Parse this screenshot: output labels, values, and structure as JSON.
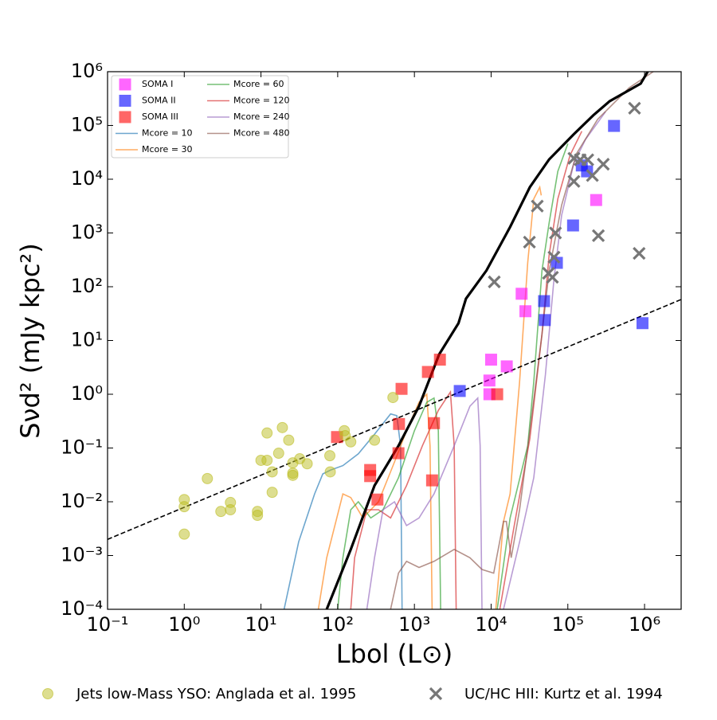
{
  "chart_data": {
    "type": "scatter",
    "xlabel": "Lbol (L⊙)",
    "ylabel": "Sνd² (mJy kpc²)",
    "xscale": "log",
    "yscale": "log",
    "xlim": [
      0.1,
      3000000
    ],
    "ylim": [
      0.0001,
      1000000
    ],
    "xticks": [
      {
        "value": 0.1,
        "label": "10⁻¹"
      },
      {
        "value": 1,
        "label": "10⁰"
      },
      {
        "value": 10,
        "label": "10¹"
      },
      {
        "value": 100,
        "label": "10²"
      },
      {
        "value": 1000,
        "label": "10³"
      },
      {
        "value": 10000,
        "label": "10⁴"
      },
      {
        "value": 100000,
        "label": "10⁵"
      },
      {
        "value": 1000000,
        "label": "10⁶"
      }
    ],
    "yticks": [
      {
        "value": 0.0001,
        "label": "10⁻⁴"
      },
      {
        "value": 0.001,
        "label": "10⁻³"
      },
      {
        "value": 0.01,
        "label": "10⁻²"
      },
      {
        "value": 0.1,
        "label": "10⁻¹"
      },
      {
        "value": 1,
        "label": "10⁰"
      },
      {
        "value": 10,
        "label": "10¹"
      },
      {
        "value": 100,
        "label": "10²"
      },
      {
        "value": 1000,
        "label": "10³"
      },
      {
        "value": 10000,
        "label": "10⁴"
      },
      {
        "value": 100000,
        "label": "10⁵"
      },
      {
        "value": 1000000,
        "label": "10⁶"
      }
    ],
    "legend_ncol": 2,
    "series": [
      {
        "name": "SOMA I",
        "marker": "square",
        "color": "#ff00ff",
        "legend": "upper left",
        "x": [
          234000,
          25000,
          28000,
          10000,
          9500,
          9500,
          16000
        ],
        "values": [
          4100,
          74,
          35,
          4.4,
          1.8,
          1.0,
          3.3
        ]
      },
      {
        "name": "SOMA II",
        "marker": "square",
        "color": "#0000ff",
        "legend": "upper left",
        "x": [
          400000,
          152000,
          178000,
          117000,
          72000,
          49000,
          50000,
          3900,
          940000
        ],
        "values": [
          98000,
          18000,
          14000,
          1380,
          278,
          54,
          24,
          1.15,
          21
        ]
      },
      {
        "name": "SOMA III",
        "marker": "square",
        "color": "#ff0000",
        "legend": "upper left",
        "x": [
          98,
          265,
          265,
          330,
          630,
          680,
          620,
          1500,
          2150,
          1800,
          1700,
          12000
        ],
        "values": [
          0.16,
          0.039,
          0.03,
          0.011,
          0.28,
          1.26,
          0.08,
          2.6,
          4.4,
          0.29,
          0.025,
          1.0
        ]
      },
      {
        "name": "Mcore = 10",
        "marker": "line",
        "color": "#1f77b4",
        "legend": "upper left",
        "x": [
          20,
          31,
          50,
          64,
          81,
          117,
          186,
          302,
          490,
          590,
          660,
          690
        ],
        "values": [
          0.0001,
          0.0018,
          0.014,
          0.033,
          0.039,
          0.047,
          0.078,
          0.18,
          0.43,
          0.4,
          0.11,
          0.0001
        ]
      },
      {
        "name": "Mcore = 30",
        "marker": "line",
        "color": "#ff7f0e",
        "legend": "upper left",
        "x": [
          56,
          72,
          117,
          148,
          213,
          340,
          550,
          790,
          1150,
          1450,
          1600,
          1700,
          null,
          11500,
          14500,
          17700,
          23500,
          30000,
          36000,
          43000,
          45000
        ],
        "values": [
          0.0001,
          0.00091,
          0.014,
          0.012,
          0.005,
          0.01,
          0.055,
          0.21,
          0.71,
          1.0,
          0.11,
          0.0001,
          null,
          0.0001,
          0.0043,
          0.014,
          1.7,
          280,
          4300,
          7100,
          5000
        ]
      },
      {
        "name": "Mcore = 60",
        "marker": "line",
        "color": "#2ca02c",
        "legend": "upper left",
        "x": [
          100,
          117,
          148,
          186,
          270,
          390,
          620,
          1000,
          1450,
          1800,
          2050,
          2200,
          null,
          12000,
          17700,
          30000,
          36000,
          46000,
          57000,
          74000,
          100000
        ],
        "values": [
          0.0001,
          0.00091,
          0.0071,
          0.01,
          0.005,
          0.0071,
          0.028,
          0.21,
          0.71,
          0.85,
          0.21,
          0.0001,
          null,
          0.0001,
          0.005,
          0.11,
          1.7,
          200,
          1550,
          14000,
          46000
        ]
      },
      {
        "name": "Mcore = 120",
        "marker": "line",
        "color": "#d62728",
        "legend": "upper left",
        "x": [
          148,
          166,
          240,
          340,
          490,
          790,
          1270,
          2050,
          2950,
          3300,
          3500,
          null,
          13000,
          20000,
          32000,
          46000,
          57000,
          74000,
          107000,
          152000
        ],
        "values": [
          0.0001,
          0.00091,
          0.0071,
          0.0071,
          0.005,
          0.02,
          0.11,
          0.5,
          1.1,
          0.11,
          0.0001,
          null,
          0.0001,
          0.0036,
          0.15,
          13,
          390,
          4300,
          28000,
          78000
        ]
      },
      {
        "name": "Mcore = 240",
        "marker": "line",
        "color": "#9467bd",
        "legend": "upper left",
        "x": [
          240,
          302,
          390,
          550,
          790,
          1150,
          1800,
          3300,
          5300,
          6700,
          7200,
          7600,
          null,
          14500,
          23500,
          36000,
          51000,
          66000,
          83000,
          120000,
          170000,
          310000
        ],
        "values": [
          0.0001,
          0.00091,
          0.0071,
          0.01,
          0.0036,
          0.005,
          0.014,
          0.11,
          0.6,
          0.85,
          0.11,
          0.0001,
          null,
          0.0001,
          0.0018,
          0.028,
          2.3,
          140,
          2150,
          20000,
          55000,
          180000
        ]
      },
      {
        "name": "Mcore = 480",
        "marker": "line",
        "color": "#8c564b",
        "legend": "upper left",
        "x": [
          490,
          620,
          790,
          1150,
          1800,
          3300,
          5300,
          7600,
          10800,
          14500,
          15800,
          18300,
          23500,
          32000,
          46000,
          57000,
          83000,
          130000,
          245000,
          630000,
          1300000
        ],
        "values": [
          0.0001,
          0.00047,
          0.00078,
          0.0006,
          0.00078,
          0.0013,
          0.00091,
          0.00055,
          0.00047,
          0.0043,
          0.0043,
          0.00091,
          0.0071,
          0.21,
          13,
          200,
          3300,
          30000,
          130000,
          500000,
          1000000
        ]
      },
      {
        "name": "Jets low-Mass YSO: Anglada et al. 1995",
        "marker": "circle",
        "color": "#bcbd22",
        "legend": "lower center",
        "x": [
          1,
          1,
          1,
          2,
          3,
          4,
          4,
          9,
          9,
          10,
          12,
          12,
          14,
          14,
          17,
          19,
          23,
          26,
          26,
          26,
          32,
          40,
          79,
          80,
          122,
          125,
          148,
          302,
          525
        ],
        "values": [
          0.011,
          0.0081,
          0.0025,
          0.027,
          0.0066,
          0.0097,
          0.0071,
          0.0066,
          0.0056,
          0.059,
          0.059,
          0.19,
          0.036,
          0.015,
          0.08,
          0.24,
          0.14,
          0.034,
          0.031,
          0.053,
          0.063,
          0.051,
          0.072,
          0.036,
          0.21,
          0.17,
          0.13,
          0.14,
          0.87
        ]
      },
      {
        "name": "UC/HC HII: Kurtz et al. 1994",
        "marker": "x",
        "color": "#777777",
        "legend": "lower center",
        "x": [
          11000,
          31600,
          40000,
          56000,
          69000,
          66000,
          63000,
          120000,
          120000,
          145000,
          182000,
          209000,
          250000,
          290000,
          740000,
          850000
        ],
        "values": [
          123,
          676,
          3160,
          178,
          1000,
          355,
          150,
          24500,
          9100,
          23000,
          23000,
          11700,
          890,
          19000,
          209000,
          417
        ]
      },
      {
        "marker": "thick",
        "color": "#000000",
        "x": [
          72,
          91,
          148,
          302,
          620,
          1150,
          2100,
          3750,
          4700,
          8700,
          17700,
          32000,
          57000,
          120000,
          215000,
          350000,
          890000,
          1100000
        ],
        "values": [
          0.0001,
          0.00023,
          0.0013,
          0.02,
          0.11,
          0.6,
          5.5,
          21,
          60,
          200,
          1290,
          7100,
          23400,
          69000,
          155000,
          282000,
          600000,
          1000000
        ]
      },
      {
        "marker": "dashed",
        "color": "#000000",
        "x": [
          0.1,
          3000000
        ],
        "values": [
          0.002,
          58
        ]
      }
    ]
  }
}
